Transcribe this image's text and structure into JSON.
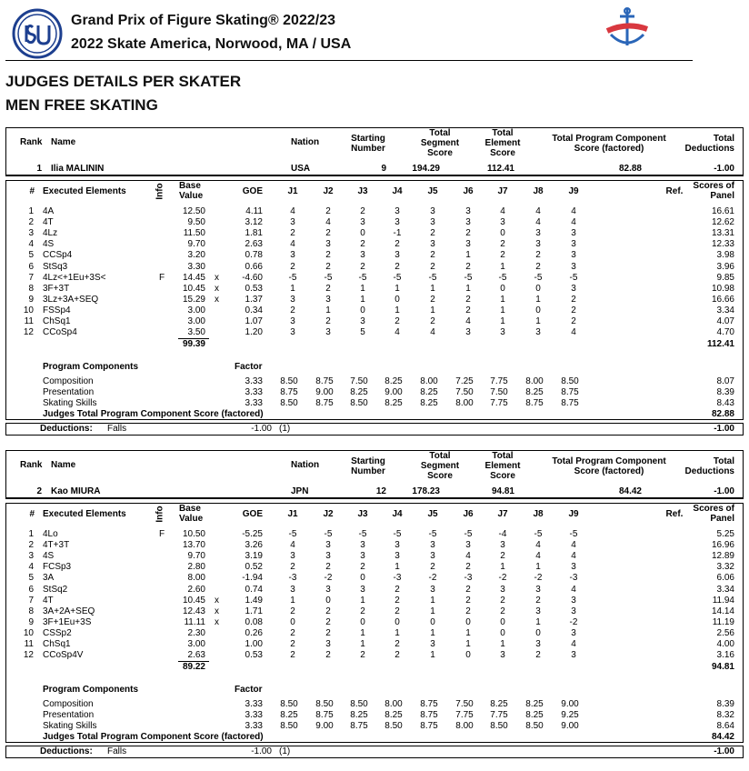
{
  "header": {
    "title": "Grand Prix of Figure Skating® 2022/23",
    "subtitle": "2022 Skate America, Norwood, MA / USA"
  },
  "heading": "JUDGES DETAILS PER SKATER",
  "segment": "MEN FREE SKATING",
  "labels": {
    "rank": "Rank",
    "name": "Name",
    "nation": "Nation",
    "starting_number": "Starting Number",
    "total_segment_score": "Total Segment Score",
    "total_element_score": "Total Element Score",
    "total_pcs": "Total Program Component Score (factored)",
    "total_deductions": "Total Deductions",
    "no": "#",
    "executed_elements": "Executed Elements",
    "info": "Info",
    "base_value": "Base Value",
    "goe": "GOE",
    "judges": [
      "J1",
      "J2",
      "J3",
      "J4",
      "J5",
      "J6",
      "J7",
      "J8",
      "J9"
    ],
    "ref": "Ref.",
    "scores_of_panel": "Scores of Panel",
    "program_components": "Program Components",
    "factor": "Factor",
    "judges_total_pcs": "Judges Total Program Component Score (factored)",
    "deductions": "Deductions:"
  },
  "skaters": [
    {
      "rank": "1",
      "name": "Ilia MALININ",
      "nation": "USA",
      "starting_number": "9",
      "total_segment_score": "194.29",
      "total_element_score": "112.41",
      "total_pcs": "82.88",
      "total_deductions": "-1.00",
      "elements": [
        {
          "no": "1",
          "element": "4A",
          "base": "12.50",
          "goe": "4.11",
          "judges": [
            "4",
            "2",
            "2",
            "3",
            "3",
            "3",
            "4",
            "4",
            "4"
          ],
          "score": "16.61"
        },
        {
          "no": "2",
          "element": "4T",
          "base": "9.50",
          "goe": "3.12",
          "judges": [
            "3",
            "4",
            "3",
            "3",
            "3",
            "3",
            "3",
            "4",
            "4"
          ],
          "score": "12.62"
        },
        {
          "no": "3",
          "element": "4Lz",
          "base": "11.50",
          "goe": "1.81",
          "judges": [
            "2",
            "2",
            "0",
            "-1",
            "2",
            "2",
            "0",
            "3",
            "3"
          ],
          "score": "13.31"
        },
        {
          "no": "4",
          "element": "4S",
          "base": "9.70",
          "goe": "2.63",
          "judges": [
            "4",
            "3",
            "2",
            "2",
            "3",
            "3",
            "2",
            "3",
            "3"
          ],
          "score": "12.33"
        },
        {
          "no": "5",
          "element": "CCSp4",
          "base": "3.20",
          "goe": "0.78",
          "judges": [
            "3",
            "2",
            "3",
            "3",
            "2",
            "1",
            "2",
            "2",
            "3"
          ],
          "score": "3.98"
        },
        {
          "no": "6",
          "element": "StSq3",
          "base": "3.30",
          "goe": "0.66",
          "judges": [
            "2",
            "2",
            "2",
            "2",
            "2",
            "2",
            "1",
            "2",
            "3"
          ],
          "score": "3.96"
        },
        {
          "no": "7",
          "element": "4Lz<+1Eu+3S<",
          "info": "F",
          "base": "14.45",
          "bonus": "x",
          "goe": "-4.60",
          "judges": [
            "-5",
            "-5",
            "-5",
            "-5",
            "-5",
            "-5",
            "-5",
            "-5",
            "-5"
          ],
          "score": "9.85"
        },
        {
          "no": "8",
          "element": "3F+3T",
          "base": "10.45",
          "bonus": "x",
          "goe": "0.53",
          "judges": [
            "1",
            "2",
            "1",
            "1",
            "1",
            "1",
            "0",
            "0",
            "3"
          ],
          "score": "10.98"
        },
        {
          "no": "9",
          "element": "3Lz+3A+SEQ",
          "base": "15.29",
          "bonus": "x",
          "goe": "1.37",
          "judges": [
            "3",
            "3",
            "1",
            "0",
            "2",
            "2",
            "1",
            "1",
            "2"
          ],
          "score": "16.66"
        },
        {
          "no": "10",
          "element": "FSSp4",
          "base": "3.00",
          "goe": "0.34",
          "judges": [
            "2",
            "1",
            "0",
            "1",
            "1",
            "2",
            "1",
            "0",
            "2"
          ],
          "score": "3.34"
        },
        {
          "no": "11",
          "element": "ChSq1",
          "base": "3.00",
          "goe": "1.07",
          "judges": [
            "3",
            "2",
            "3",
            "2",
            "2",
            "4",
            "1",
            "1",
            "2"
          ],
          "score": "4.07"
        },
        {
          "no": "12",
          "element": "CCoSp4",
          "base": "3.50",
          "goe": "1.20",
          "judges": [
            "3",
            "3",
            "5",
            "4",
            "4",
            "3",
            "3",
            "3",
            "4"
          ],
          "score": "4.70"
        }
      ],
      "base_total": "99.39",
      "components": [
        {
          "name": "Composition",
          "factor": "3.33",
          "judges": [
            "8.50",
            "8.75",
            "7.50",
            "8.25",
            "8.00",
            "7.25",
            "7.75",
            "8.00",
            "8.50"
          ],
          "score": "8.07"
        },
        {
          "name": "Presentation",
          "factor": "3.33",
          "judges": [
            "8.75",
            "9.00",
            "8.25",
            "9.00",
            "8.25",
            "7.50",
            "7.50",
            "8.25",
            "8.75"
          ],
          "score": "8.39"
        },
        {
          "name": "Skating Skills",
          "factor": "3.33",
          "judges": [
            "8.50",
            "8.75",
            "8.50",
            "8.25",
            "8.25",
            "8.00",
            "7.75",
            "8.75",
            "8.75"
          ],
          "score": "8.43"
        }
      ],
      "deduction": {
        "type": "Falls",
        "value": "-1.00",
        "count": "(1)"
      }
    },
    {
      "rank": "2",
      "name": "Kao MIURA",
      "nation": "JPN",
      "starting_number": "12",
      "total_segment_score": "178.23",
      "total_element_score": "94.81",
      "total_pcs": "84.42",
      "total_deductions": "-1.00",
      "elements": [
        {
          "no": "1",
          "element": "4Lo",
          "info": "F",
          "base": "10.50",
          "goe": "-5.25",
          "judges": [
            "-5",
            "-5",
            "-5",
            "-5",
            "-5",
            "-5",
            "-4",
            "-5",
            "-5"
          ],
          "score": "5.25"
        },
        {
          "no": "2",
          "element": "4T+3T",
          "base": "13.70",
          "goe": "3.26",
          "judges": [
            "4",
            "3",
            "3",
            "3",
            "3",
            "3",
            "3",
            "4",
            "4"
          ],
          "score": "16.96"
        },
        {
          "no": "3",
          "element": "4S",
          "base": "9.70",
          "goe": "3.19",
          "judges": [
            "3",
            "3",
            "3",
            "3",
            "3",
            "4",
            "2",
            "4",
            "4"
          ],
          "score": "12.89"
        },
        {
          "no": "4",
          "element": "FCSp3",
          "base": "2.80",
          "goe": "0.52",
          "judges": [
            "2",
            "2",
            "2",
            "1",
            "2",
            "2",
            "1",
            "1",
            "3"
          ],
          "score": "3.32"
        },
        {
          "no": "5",
          "element": "3A",
          "base": "8.00",
          "goe": "-1.94",
          "judges": [
            "-3",
            "-2",
            "0",
            "-3",
            "-2",
            "-3",
            "-2",
            "-2",
            "-3"
          ],
          "score": "6.06"
        },
        {
          "no": "6",
          "element": "StSq2",
          "base": "2.60",
          "goe": "0.74",
          "judges": [
            "3",
            "3",
            "3",
            "2",
            "3",
            "2",
            "3",
            "3",
            "4"
          ],
          "score": "3.34"
        },
        {
          "no": "7",
          "element": "4T",
          "base": "10.45",
          "bonus": "x",
          "goe": "1.49",
          "judges": [
            "1",
            "0",
            "1",
            "2",
            "1",
            "2",
            "2",
            "2",
            "3"
          ],
          "score": "11.94"
        },
        {
          "no": "8",
          "element": "3A+2A+SEQ",
          "base": "12.43",
          "bonus": "x",
          "goe": "1.71",
          "judges": [
            "2",
            "2",
            "2",
            "2",
            "1",
            "2",
            "2",
            "3",
            "3"
          ],
          "score": "14.14"
        },
        {
          "no": "9",
          "element": "3F+1Eu+3S",
          "base": "11.11",
          "bonus": "x",
          "goe": "0.08",
          "judges": [
            "0",
            "2",
            "0",
            "0",
            "0",
            "0",
            "0",
            "1",
            "-2"
          ],
          "score": "11.19"
        },
        {
          "no": "10",
          "element": "CSSp2",
          "base": "2.30",
          "goe": "0.26",
          "judges": [
            "2",
            "2",
            "1",
            "1",
            "1",
            "1",
            "0",
            "0",
            "3"
          ],
          "score": "2.56"
        },
        {
          "no": "11",
          "element": "ChSq1",
          "base": "3.00",
          "goe": "1.00",
          "judges": [
            "2",
            "3",
            "1",
            "2",
            "3",
            "1",
            "1",
            "3",
            "4"
          ],
          "score": "4.00"
        },
        {
          "no": "12",
          "element": "CCoSp4V",
          "base": "2.63",
          "goe": "0.53",
          "judges": [
            "2",
            "2",
            "2",
            "2",
            "1",
            "0",
            "3",
            "2",
            "3"
          ],
          "score": "3.16"
        }
      ],
      "base_total": "89.22",
      "components": [
        {
          "name": "Composition",
          "factor": "3.33",
          "judges": [
            "8.50",
            "8.50",
            "8.50",
            "8.00",
            "8.75",
            "7.50",
            "8.25",
            "8.25",
            "9.00"
          ],
          "score": "8.39"
        },
        {
          "name": "Presentation",
          "factor": "3.33",
          "judges": [
            "8.25",
            "8.75",
            "8.25",
            "8.25",
            "8.75",
            "7.75",
            "7.75",
            "8.25",
            "9.25"
          ],
          "score": "8.32"
        },
        {
          "name": "Skating Skills",
          "factor": "3.33",
          "judges": [
            "8.50",
            "9.00",
            "8.75",
            "8.50",
            "8.75",
            "8.00",
            "8.50",
            "8.50",
            "9.00"
          ],
          "score": "8.64"
        }
      ],
      "deduction": {
        "type": "Falls",
        "value": "-1.00",
        "count": "(1)"
      }
    }
  ]
}
